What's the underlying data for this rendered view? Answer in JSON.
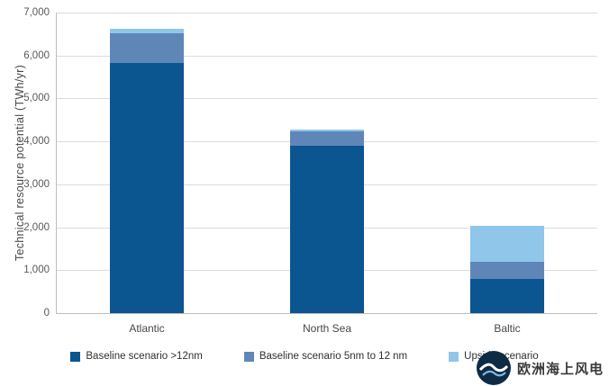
{
  "chart_data": {
    "type": "bar",
    "stacked": true,
    "title": "",
    "xlabel": "",
    "ylabel": "Technical resource potential (TWh/yr)",
    "ylim": [
      0,
      7000
    ],
    "grid": true,
    "legend_position": "bottom",
    "yticks": [
      {
        "value": 0,
        "label": "0"
      },
      {
        "value": 1000,
        "label": "1,000"
      },
      {
        "value": 2000,
        "label": "2,000"
      },
      {
        "value": 3000,
        "label": "3,000"
      },
      {
        "value": 4000,
        "label": "4,000"
      },
      {
        "value": 5000,
        "label": "5,000"
      },
      {
        "value": 6000,
        "label": "6,000"
      },
      {
        "value": 7000,
        "label": "7,000"
      }
    ],
    "categories": [
      "Atlantic",
      "North Sea",
      "Baltic"
    ],
    "series": [
      {
        "name": "Baseline scenario >12nm",
        "color": "#0b5591",
        "values": [
          5820,
          3900,
          800
        ]
      },
      {
        "name": "Baseline scenario 5nm to 12 nm",
        "color": "#5e87b8",
        "values": [
          700,
          330,
          400
        ]
      },
      {
        "name": "Upside scenario",
        "color": "#8fc6ea",
        "values": [
          110,
          50,
          830
        ]
      }
    ]
  },
  "watermark": {
    "text": "欧洲海上风电"
  }
}
